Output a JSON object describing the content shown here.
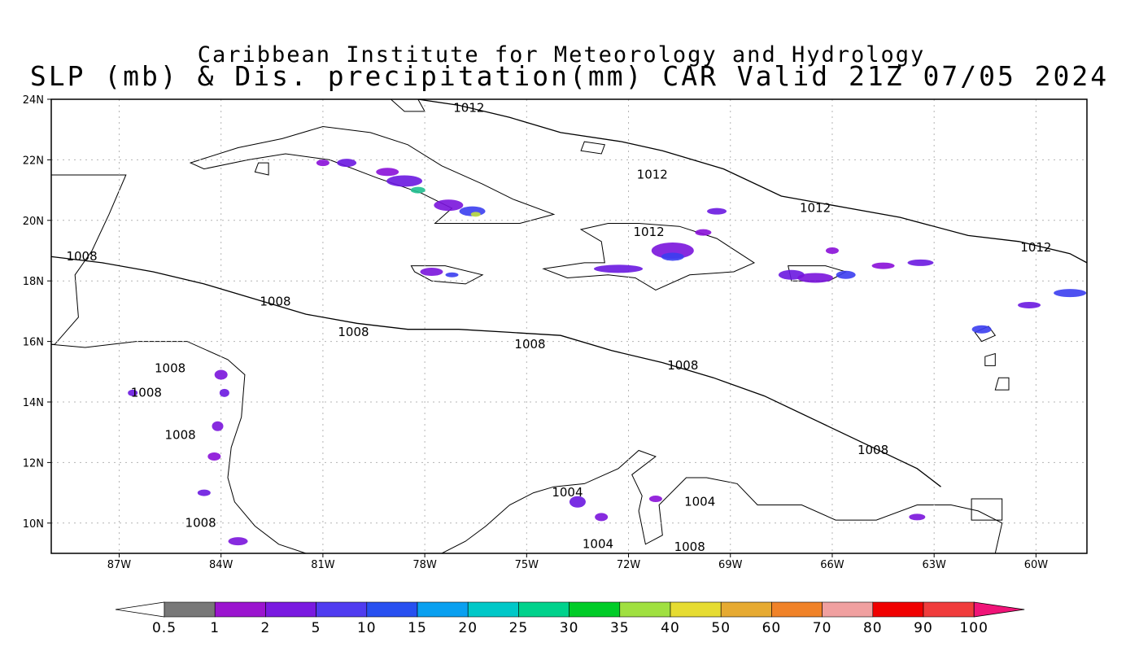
{
  "header": {
    "line1": "Caribbean Institute for Meteorology and Hydrology",
    "line2": "SLP (mb) & Dis. precipitation(mm) CAR Valid 21Z 07/05 2024"
  },
  "map": {
    "lon_range": [
      -89,
      -58.5
    ],
    "lat_range": [
      9,
      24
    ],
    "lon_ticks": [
      {
        "value": -87,
        "label": "87W"
      },
      {
        "value": -84,
        "label": "84W"
      },
      {
        "value": -81,
        "label": "81W"
      },
      {
        "value": -78,
        "label": "78W"
      },
      {
        "value": -75,
        "label": "75W"
      },
      {
        "value": -72,
        "label": "72W"
      },
      {
        "value": -69,
        "label": "69W"
      },
      {
        "value": -66,
        "label": "66W"
      },
      {
        "value": -63,
        "label": "63W"
      },
      {
        "value": -60,
        "label": "60W"
      }
    ],
    "lat_ticks": [
      {
        "value": 24,
        "label": "24N"
      },
      {
        "value": 22,
        "label": "22N"
      },
      {
        "value": 20,
        "label": "20N"
      },
      {
        "value": 18,
        "label": "18N"
      },
      {
        "value": 16,
        "label": "16N"
      },
      {
        "value": 14,
        "label": "14N"
      },
      {
        "value": 12,
        "label": "12N"
      },
      {
        "value": 10,
        "label": "10N"
      }
    ],
    "grid": true,
    "isobars": [
      {
        "value": "1012",
        "points": [
          [
            -78.2,
            24
          ],
          [
            -77,
            23.8
          ],
          [
            -75.5,
            23.4
          ],
          [
            -74,
            22.9
          ],
          [
            -72.2,
            22.6
          ],
          [
            -71,
            22.3
          ],
          [
            -69.2,
            21.7
          ],
          [
            -67.5,
            20.8
          ],
          [
            -66,
            20.5
          ],
          [
            -64,
            20.1
          ],
          [
            -62,
            19.5
          ],
          [
            -60.5,
            19.3
          ],
          [
            -59,
            18.9
          ],
          [
            -58.5,
            18.6
          ]
        ]
      },
      {
        "value": "1008",
        "points": [
          [
            -89,
            18.8
          ],
          [
            -87.5,
            18.6
          ],
          [
            -86,
            18.3
          ],
          [
            -84.5,
            17.9
          ],
          [
            -83,
            17.4
          ],
          [
            -81.5,
            16.9
          ],
          [
            -80,
            16.6
          ],
          [
            -78.5,
            16.4
          ],
          [
            -77,
            16.4
          ],
          [
            -75.5,
            16.3
          ],
          [
            -74,
            16.2
          ],
          [
            -72.5,
            15.7
          ],
          [
            -71,
            15.3
          ],
          [
            -69.5,
            14.8
          ],
          [
            -68,
            14.2
          ],
          [
            -66.5,
            13.4
          ],
          [
            -65,
            12.6
          ],
          [
            -63.5,
            11.8
          ],
          [
            -62.8,
            11.2
          ]
        ]
      }
    ],
    "contour_labels": [
      {
        "text": "1012",
        "lon": -76.7,
        "lat": 23.7
      },
      {
        "text": "1012",
        "lon": -71.3,
        "lat": 21.5
      },
      {
        "text": "1012",
        "lon": -66.5,
        "lat": 20.4
      },
      {
        "text": "1012",
        "lon": -71.4,
        "lat": 19.6
      },
      {
        "text": "1012",
        "lon": -60,
        "lat": 19.1
      },
      {
        "text": "1008",
        "lon": -88.1,
        "lat": 18.8
      },
      {
        "text": "1008",
        "lon": -82.4,
        "lat": 17.3
      },
      {
        "text": "1008",
        "lon": -80.1,
        "lat": 16.3
      },
      {
        "text": "1008",
        "lon": -74.9,
        "lat": 15.9
      },
      {
        "text": "1008",
        "lon": -70.4,
        "lat": 15.2
      },
      {
        "text": "1008",
        "lon": -64.8,
        "lat": 12.4
      },
      {
        "text": "1008",
        "lon": -85.5,
        "lat": 15.1
      },
      {
        "text": "1008",
        "lon": -86.2,
        "lat": 14.3
      },
      {
        "text": "1008",
        "lon": -85.2,
        "lat": 12.9
      },
      {
        "text": "1008",
        "lon": -84.6,
        "lat": 10.0
      },
      {
        "text": "1008",
        "lon": -70.2,
        "lat": 9.2
      },
      {
        "text": "1004",
        "lon": -73.8,
        "lat": 11.0
      },
      {
        "text": "1004",
        "lon": -69.9,
        "lat": 10.7
      },
      {
        "text": "1004",
        "lon": -72.9,
        "lat": 9.3
      }
    ],
    "land": [
      [
        [
          -84.9,
          21.9
        ],
        [
          -83.5,
          22.4
        ],
        [
          -82.2,
          22.7
        ],
        [
          -81,
          23.1
        ],
        [
          -79.6,
          22.9
        ],
        [
          -78.5,
          22.5
        ],
        [
          -77.5,
          21.8
        ],
        [
          -76.3,
          21.2
        ],
        [
          -75.4,
          20.7
        ],
        [
          -74.2,
          20.2
        ],
        [
          -75.2,
          19.9
        ],
        [
          -76.7,
          19.9
        ],
        [
          -77.7,
          19.9
        ],
        [
          -77.2,
          20.4
        ],
        [
          -78.1,
          20.9
        ],
        [
          -79.4,
          21.4
        ],
        [
          -80.8,
          22.0
        ],
        [
          -82.1,
          22.2
        ],
        [
          -83.2,
          22.0
        ],
        [
          -84.5,
          21.7
        ]
      ],
      [
        [
          -78.4,
          18.5
        ],
        [
          -77.4,
          18.5
        ],
        [
          -76.3,
          18.2
        ],
        [
          -76.8,
          17.9
        ],
        [
          -77.8,
          18.0
        ],
        [
          -78.3,
          18.3
        ]
      ],
      [
        [
          -74.5,
          18.4
        ],
        [
          -73.3,
          18.6
        ],
        [
          -72.7,
          18.6
        ],
        [
          -72.8,
          19.3
        ],
        [
          -73.4,
          19.7
        ],
        [
          -72.6,
          19.9
        ],
        [
          -71.7,
          19.9
        ],
        [
          -70.5,
          19.8
        ],
        [
          -69.4,
          19.4
        ],
        [
          -68.3,
          18.6
        ],
        [
          -68.9,
          18.3
        ],
        [
          -70.2,
          18.2
        ],
        [
          -71.2,
          17.7
        ],
        [
          -71.8,
          18.1
        ],
        [
          -72.6,
          18.2
        ],
        [
          -73.8,
          18.1
        ]
      ],
      [
        [
          -67.3,
          18.5
        ],
        [
          -66.2,
          18.5
        ],
        [
          -65.6,
          18.3
        ],
        [
          -66.1,
          18.0
        ],
        [
          -67.2,
          18.0
        ]
      ],
      [
        [
          -88,
          21.5
        ],
        [
          -86.8,
          21.5
        ],
        [
          -87.3,
          20.2
        ],
        [
          -87.8,
          19.0
        ],
        [
          -88.3,
          18.2
        ],
        [
          -88.2,
          16.8
        ],
        [
          -88.9,
          15.9
        ],
        [
          -89,
          15.9
        ],
        [
          -89,
          21.5
        ]
      ],
      [
        [
          -89,
          15.9
        ],
        [
          -88,
          15.8
        ],
        [
          -86.5,
          16
        ],
        [
          -85,
          16
        ],
        [
          -83.8,
          15.4
        ],
        [
          -83.3,
          14.9
        ],
        [
          -83.4,
          13.5
        ],
        [
          -83.7,
          12.5
        ],
        [
          -83.8,
          11.5
        ],
        [
          -83.6,
          10.7
        ],
        [
          -83,
          9.9
        ],
        [
          -82.3,
          9.3
        ],
        [
          -81.5,
          9.0
        ],
        [
          -89,
          9.0
        ]
      ],
      [
        [
          -77.5,
          9.0
        ],
        [
          -76.8,
          9.4
        ],
        [
          -76.2,
          9.9
        ],
        [
          -75.5,
          10.6
        ],
        [
          -74.8,
          11.0
        ],
        [
          -74.2,
          11.2
        ],
        [
          -73.3,
          11.3
        ],
        [
          -72.3,
          11.8
        ],
        [
          -71.7,
          12.4
        ],
        [
          -71.2,
          12.2
        ],
        [
          -71.9,
          11.6
        ],
        [
          -71.6,
          10.9
        ],
        [
          -71.7,
          10.4
        ],
        [
          -71.5,
          9.3
        ],
        [
          -71.0,
          9.6
        ],
        [
          -71.1,
          10.6
        ],
        [
          -70.3,
          11.5
        ],
        [
          -69.7,
          11.5
        ],
        [
          -68.8,
          11.3
        ],
        [
          -68.2,
          10.6
        ],
        [
          -66.9,
          10.6
        ],
        [
          -65.9,
          10.1
        ],
        [
          -64.7,
          10.1
        ],
        [
          -63.5,
          10.6
        ],
        [
          -62.5,
          10.6
        ],
        [
          -61.7,
          10.4
        ],
        [
          -61.0,
          10.0
        ],
        [
          -61.2,
          9.0
        ]
      ],
      [
        [
          -61.9,
          10.8
        ],
        [
          -61.0,
          10.8
        ],
        [
          -61.0,
          10.1
        ],
        [
          -61.9,
          10.1
        ]
      ],
      [
        [
          -61.8,
          16.3
        ],
        [
          -61.4,
          16.5
        ],
        [
          -61.2,
          16.2
        ],
        [
          -61.6,
          16.0
        ]
      ],
      [
        [
          -61.5,
          15.5
        ],
        [
          -61.2,
          15.6
        ],
        [
          -61.2,
          15.2
        ],
        [
          -61.5,
          15.2
        ]
      ],
      [
        [
          -61.1,
          14.8
        ],
        [
          -60.8,
          14.8
        ],
        [
          -60.8,
          14.4
        ],
        [
          -61.2,
          14.4
        ]
      ],
      [
        [
          -73.3,
          22.6
        ],
        [
          -72.7,
          22.5
        ],
        [
          -72.8,
          22.2
        ],
        [
          -73.4,
          22.3
        ]
      ],
      [
        [
          -79.0,
          24.0
        ],
        [
          -78.2,
          24.0
        ],
        [
          -78.0,
          23.6
        ],
        [
          -78.6,
          23.6
        ]
      ],
      [
        [
          -82.9,
          21.9
        ],
        [
          -82.6,
          21.9
        ],
        [
          -82.6,
          21.5
        ],
        [
          -83.0,
          21.6
        ]
      ]
    ],
    "precip": [
      {
        "lon": -79.1,
        "lat": 21.6,
        "rx": 14,
        "ry": 5,
        "c": "#8a10d8"
      },
      {
        "lon": -78.6,
        "lat": 21.3,
        "rx": 22,
        "ry": 7,
        "c": "#6a18e0"
      },
      {
        "lon": -78.2,
        "lat": 21.0,
        "rx": 9,
        "ry": 4,
        "c": "#20c090"
      },
      {
        "lon": -77.3,
        "lat": 20.5,
        "rx": 18,
        "ry": 7,
        "c": "#7a14dc"
      },
      {
        "lon": -76.6,
        "lat": 20.3,
        "rx": 16,
        "ry": 6,
        "c": "#3b3ef0"
      },
      {
        "lon": -76.5,
        "lat": 20.2,
        "rx": 6,
        "ry": 3,
        "c": "#c0e040"
      },
      {
        "lon": -81.0,
        "lat": 21.9,
        "rx": 8,
        "ry": 4,
        "c": "#8a10d8"
      },
      {
        "lon": -80.3,
        "lat": 21.9,
        "rx": 12,
        "ry": 5,
        "c": "#6a18e0"
      },
      {
        "lon": -77.8,
        "lat": 18.3,
        "rx": 14,
        "ry": 5,
        "c": "#7a14dc"
      },
      {
        "lon": -77.2,
        "lat": 18.2,
        "rx": 8,
        "ry": 3,
        "c": "#3b3ef0"
      },
      {
        "lon": -70.7,
        "lat": 19.0,
        "rx": 26,
        "ry": 10,
        "c": "#7a14dc"
      },
      {
        "lon": -70.7,
        "lat": 18.8,
        "rx": 14,
        "ry": 5,
        "c": "#3b3ef0"
      },
      {
        "lon": -72.3,
        "lat": 18.4,
        "rx": 30,
        "ry": 5,
        "c": "#6a18e0"
      },
      {
        "lon": -69.8,
        "lat": 19.6,
        "rx": 10,
        "ry": 4,
        "c": "#8a10d8"
      },
      {
        "lon": -69.4,
        "lat": 20.3,
        "rx": 12,
        "ry": 4,
        "c": "#6a18e0"
      },
      {
        "lon": -67.2,
        "lat": 18.2,
        "rx": 16,
        "ry": 6,
        "c": "#6a18e0"
      },
      {
        "lon": -66.5,
        "lat": 18.1,
        "rx": 22,
        "ry": 6,
        "c": "#7a14dc"
      },
      {
        "lon": -65.6,
        "lat": 18.2,
        "rx": 12,
        "ry": 5,
        "c": "#3b3ef0"
      },
      {
        "lon": -64.5,
        "lat": 18.5,
        "rx": 14,
        "ry": 4,
        "c": "#8a10d8"
      },
      {
        "lon": -63.4,
        "lat": 18.6,
        "rx": 16,
        "ry": 4,
        "c": "#6a18e0"
      },
      {
        "lon": -66.0,
        "lat": 19.0,
        "rx": 8,
        "ry": 4,
        "c": "#8a10d8"
      },
      {
        "lon": -61.6,
        "lat": 16.4,
        "rx": 12,
        "ry": 5,
        "c": "#3b3ef0"
      },
      {
        "lon": -60.2,
        "lat": 17.2,
        "rx": 14,
        "ry": 4,
        "c": "#6a18e0"
      },
      {
        "lon": -59.0,
        "lat": 17.6,
        "rx": 20,
        "ry": 5,
        "c": "#3b3ef0"
      },
      {
        "lon": -84.0,
        "lat": 14.9,
        "rx": 8,
        "ry": 6,
        "c": "#7a14dc"
      },
      {
        "lon": -83.9,
        "lat": 14.3,
        "rx": 6,
        "ry": 5,
        "c": "#6a18e0"
      },
      {
        "lon": -84.1,
        "lat": 13.2,
        "rx": 7,
        "ry": 6,
        "c": "#7a14dc"
      },
      {
        "lon": -84.2,
        "lat": 12.2,
        "rx": 8,
        "ry": 5,
        "c": "#8a10d8"
      },
      {
        "lon": -84.5,
        "lat": 11.0,
        "rx": 8,
        "ry": 4,
        "c": "#6a18e0"
      },
      {
        "lon": -83.5,
        "lat": 9.4,
        "rx": 12,
        "ry": 5,
        "c": "#7a14dc"
      },
      {
        "lon": -73.5,
        "lat": 10.7,
        "rx": 10,
        "ry": 7,
        "c": "#6a18e0"
      },
      {
        "lon": -72.8,
        "lat": 10.2,
        "rx": 8,
        "ry": 5,
        "c": "#7a14dc"
      },
      {
        "lon": -71.2,
        "lat": 10.8,
        "rx": 8,
        "ry": 4,
        "c": "#8a10d8"
      },
      {
        "lon": -63.5,
        "lat": 10.2,
        "rx": 10,
        "ry": 4,
        "c": "#7a14dc"
      },
      {
        "lon": -86.6,
        "lat": 14.3,
        "rx": 6,
        "ry": 4,
        "c": "#6a18e0"
      }
    ]
  },
  "colorbar": {
    "labels": [
      "0.5",
      "1",
      "2",
      "5",
      "10",
      "15",
      "20",
      "25",
      "30",
      "35",
      "40",
      "50",
      "60",
      "70",
      "80",
      "90",
      "100"
    ],
    "colors": [
      "#787878",
      "#9b14cf",
      "#7a1ae0",
      "#503cf0",
      "#2850f0",
      "#0aa0f0",
      "#00c8c8",
      "#00d28c",
      "#00cc28",
      "#a0e040",
      "#e6dc32",
      "#e6aa32",
      "#f08228",
      "#f0a0a0",
      "#f00000",
      "#f03c3c"
    ],
    "over_color": "#f01478",
    "under_color": "#ffffff"
  }
}
